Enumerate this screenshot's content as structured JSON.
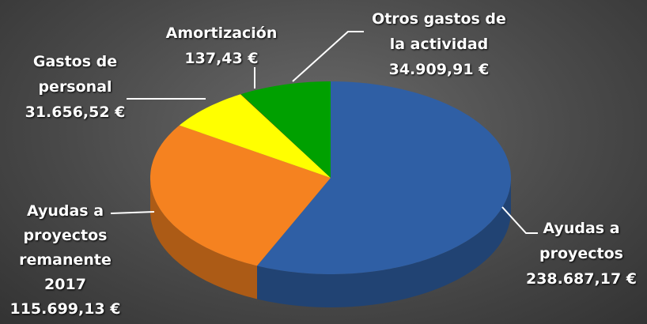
{
  "chart_data": {
    "type": "pie",
    "categories": [
      "Ayudas a proyectos",
      "Ayudas a proyectos remanente 2017",
      "Gastos de personal",
      "Amortización",
      "Otros gastos de la actividad"
    ],
    "values": [
      238687.17,
      115699.13,
      31656.52,
      137.43,
      34909.91
    ],
    "value_labels": [
      "238.687,17 €",
      "115.699,13 €",
      "31.656,52 €",
      "137,43 €",
      "34.909,91 €"
    ],
    "colors": [
      "#2f5fa5",
      "#f58220",
      "#ffff00",
      "#c00000",
      "#00a000"
    ]
  }
}
